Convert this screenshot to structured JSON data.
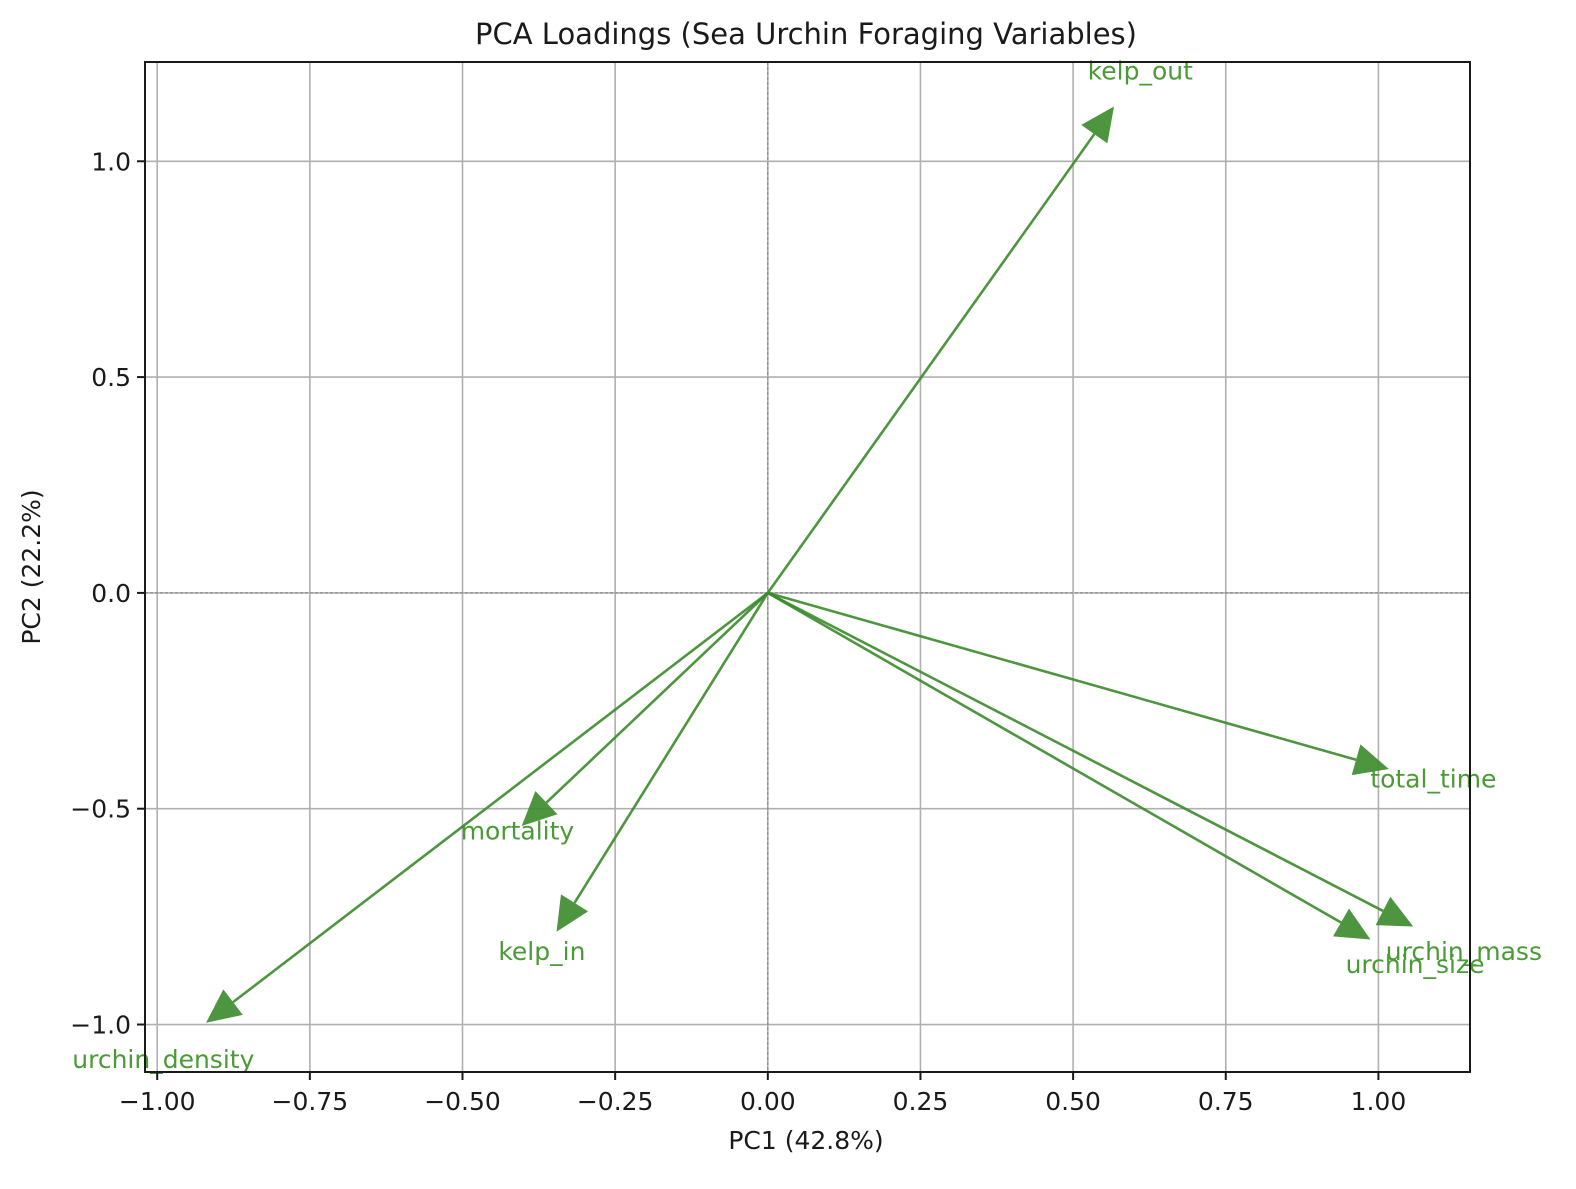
{
  "chart_data": {
    "type": "scatter",
    "subtype": "pca-biplot-loadings",
    "title": "PCA Loadings (Sea Urchin Foraging Variables)",
    "xlabel": "PC1 (42.8%)",
    "ylabel": "PC2 (22.2%)",
    "xlim": [
      -1.02,
      1.15
    ],
    "ylim": [
      -1.11,
      1.23
    ],
    "xticks": [
      -1.0,
      -0.75,
      -0.5,
      -0.25,
      0.0,
      0.25,
      0.5,
      0.75,
      1.0
    ],
    "xtick_labels": [
      "−1.00",
      "−0.75",
      "−0.50",
      "−0.25",
      "0.00",
      "0.25",
      "0.50",
      "0.75",
      "1.00"
    ],
    "yticks": [
      -1.0,
      -0.5,
      0.0,
      0.5,
      1.0
    ],
    "ytick_labels": [
      "−1.0",
      "−0.5",
      "0.0",
      "0.5",
      "1.0"
    ],
    "grid": true,
    "origin_lines": true,
    "arrow_color": "#3a8a2a",
    "label_color": "#4a9a35",
    "vectors": [
      {
        "name": "kelp_out",
        "x": 0.567,
        "y": 1.127,
        "label_x": 0.61,
        "label_y": 1.21
      },
      {
        "name": "total_time",
        "x": 1.017,
        "y": -0.408,
        "label_x": 1.09,
        "label_y": -0.43
      },
      {
        "name": "urchin_mass",
        "x": 1.057,
        "y": -0.773,
        "label_x": 1.14,
        "label_y": -0.83
      },
      {
        "name": "urchin_size",
        "x": 0.987,
        "y": -0.803,
        "label_x": 1.06,
        "label_y": -0.86
      },
      {
        "name": "mortality",
        "x": -0.403,
        "y": -0.54,
        "label_x": -0.41,
        "label_y": -0.55
      },
      {
        "name": "kelp_in",
        "x": -0.346,
        "y": -0.785,
        "label_x": -0.37,
        "label_y": -0.83
      },
      {
        "name": "urchin_density",
        "x": -0.92,
        "y": -0.996,
        "label_x": -0.99,
        "label_y": -1.08
      }
    ]
  }
}
